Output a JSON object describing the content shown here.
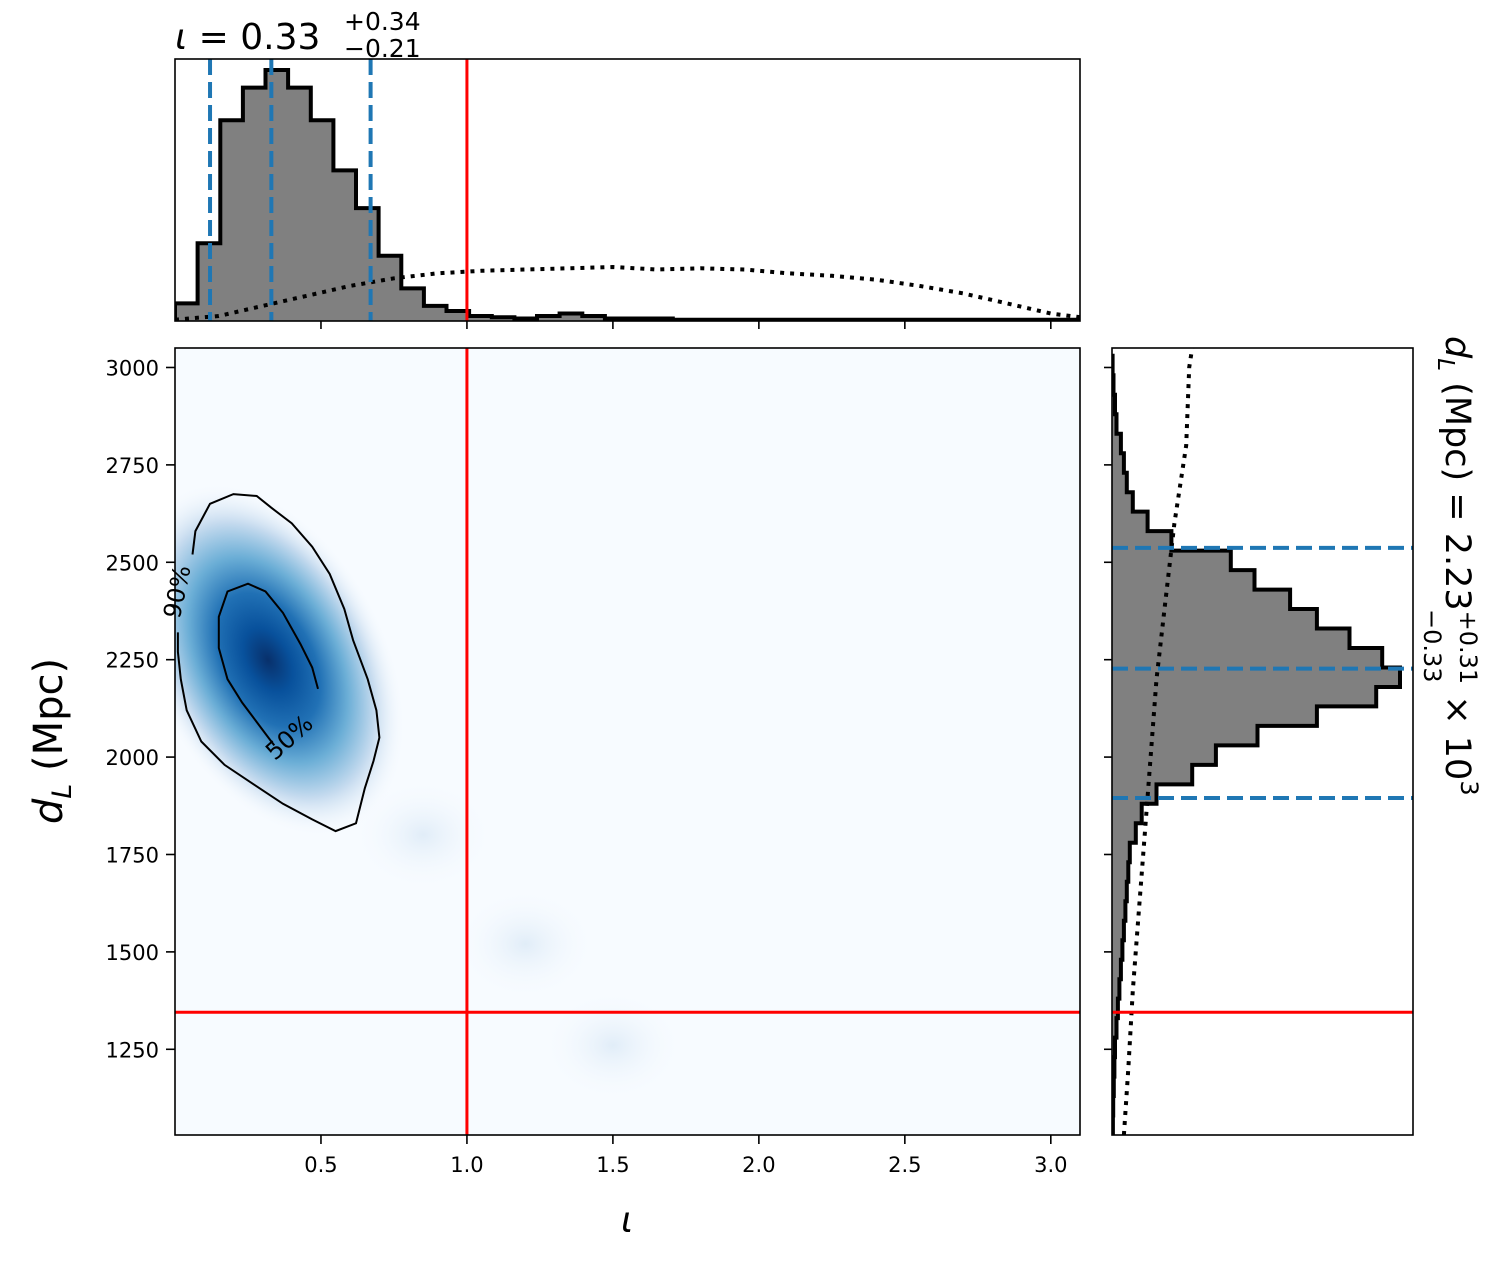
{
  "chart_data": [
    {
      "type": "heatmap",
      "panel": "joint",
      "xlabel_base": "ι",
      "ylabel_base": "d",
      "ylabel_sub": "L",
      "ylabel_unit": " (Mpc)",
      "xlim": [
        0.0,
        3.1
      ],
      "ylim": [
        1030,
        3050
      ],
      "xticks": [
        0.5,
        1.0,
        1.5,
        2.0,
        2.5,
        3.0
      ],
      "xtick_labels": [
        "0.5",
        "1.0",
        "1.5",
        "2.0",
        "2.5",
        "3.0"
      ],
      "yticks": [
        1250,
        1500,
        1750,
        2000,
        2250,
        2500,
        2750,
        3000
      ],
      "ytick_labels": [
        "1250",
        "1500",
        "1750",
        "2000",
        "2250",
        "2500",
        "2750",
        "3000"
      ],
      "colormap": "Blues",
      "density_peak": {
        "iota": 0.3,
        "dL": 2235
      },
      "density_secondary_tail": [
        {
          "iota": 0.85,
          "dL": 1800,
          "weight": 0.05
        },
        {
          "iota": 1.2,
          "dL": 1520,
          "weight": 0.04
        },
        {
          "iota": 1.5,
          "dL": 1260,
          "weight": 0.035
        }
      ],
      "injected_value": {
        "iota": 1.0,
        "dL": 1345
      },
      "injection_color": "#ff0000",
      "contours": [
        {
          "label": "50%",
          "points": [
            [
              0.49,
              2175
            ],
            [
              0.47,
              2230
            ],
            [
              0.43,
              2290
            ],
            [
              0.37,
              2370
            ],
            [
              0.31,
              2425
            ],
            [
              0.25,
              2445
            ],
            [
              0.18,
              2425
            ],
            [
              0.15,
              2360
            ],
            [
              0.15,
              2280
            ],
            [
              0.18,
              2200
            ],
            [
              0.23,
              2140
            ],
            [
              0.28,
              2090
            ],
            [
              0.32,
              2050
            ],
            [
              0.34,
              2030
            ]
          ]
        },
        {
          "label": "90%",
          "points": [
            [
              0.06,
              2520
            ],
            [
              0.07,
              2580
            ],
            [
              0.12,
              2650
            ],
            [
              0.2,
              2675
            ],
            [
              0.28,
              2670
            ],
            [
              0.33,
              2640
            ],
            [
              0.4,
              2600
            ],
            [
              0.47,
              2540
            ],
            [
              0.53,
              2470
            ],
            [
              0.58,
              2380
            ],
            [
              0.61,
              2300
            ],
            [
              0.66,
              2200
            ],
            [
              0.69,
              2120
            ],
            [
              0.7,
              2050
            ],
            [
              0.68,
              1990
            ],
            [
              0.65,
              1920
            ],
            [
              0.62,
              1830
            ],
            [
              0.55,
              1810
            ],
            [
              0.47,
              1840
            ],
            [
              0.37,
              1880
            ],
            [
              0.27,
              1930
            ],
            [
              0.17,
              1980
            ],
            [
              0.09,
              2040
            ],
            [
              0.04,
              2120
            ],
            [
              0.02,
              2200
            ],
            [
              0.01,
              2270
            ],
            [
              0.01,
              2320
            ]
          ]
        }
      ]
    },
    {
      "type": "histogram",
      "panel": "top-marginal",
      "parameter": "ι",
      "title_value": "0.33",
      "title_plus": "+0.34",
      "title_minus": "−0.21",
      "bin_edges": [
        0.0,
        0.0775,
        0.155,
        0.2325,
        0.31,
        0.3875,
        0.465,
        0.5425,
        0.62,
        0.6975,
        0.775,
        0.8525,
        0.93,
        1.0075,
        1.085,
        1.1625,
        1.24,
        1.3175,
        1.395,
        1.4725,
        1.55,
        1.6275,
        1.705,
        1.7825,
        1.86,
        1.9375,
        2.015,
        2.0925,
        2.17,
        2.2475,
        2.325,
        2.4025,
        2.48,
        2.5575,
        2.635,
        2.7125,
        2.79,
        2.8675,
        2.945,
        3.0225,
        3.1
      ],
      "counts": [
        0.07,
        0.31,
        0.8,
        0.93,
        1.0,
        0.93,
        0.8,
        0.6,
        0.45,
        0.26,
        0.13,
        0.06,
        0.04,
        0.02,
        0.015,
        0.01,
        0.02,
        0.03,
        0.02,
        0.01,
        0.01,
        0.01,
        0.005,
        0.005,
        0.005,
        0.005,
        0.005,
        0.005,
        0.005,
        0.005,
        0.005,
        0.005,
        0.005,
        0.005,
        0.005,
        0.005,
        0.005,
        0.005,
        0.005,
        0.005
      ],
      "prior": {
        "x": [
          0.0,
          0.15,
          0.3,
          0.45,
          0.6,
          0.75,
          0.9,
          1.05,
          1.2,
          1.35,
          1.5,
          1.65,
          1.8,
          1.95,
          2.1,
          2.25,
          2.4,
          2.55,
          2.7,
          2.85,
          3.0,
          3.1
        ],
        "y": [
          0.005,
          0.02,
          0.06,
          0.1,
          0.14,
          0.17,
          0.19,
          0.2,
          0.205,
          0.21,
          0.215,
          0.205,
          0.21,
          0.205,
          0.19,
          0.18,
          0.165,
          0.14,
          0.11,
          0.07,
          0.03,
          0.015
        ]
      },
      "quantiles": [
        0.12,
        0.33,
        0.67
      ],
      "injected_value": 1.0,
      "fill_color": "#808080",
      "quantile_color": "#1f77b4"
    },
    {
      "type": "histogram",
      "panel": "right-marginal",
      "orientation": "horizontal",
      "parameter": "d_L",
      "title_prefix": "d",
      "title_sub": "L",
      "title_mid": " (Mpc) = 2.23",
      "title_plus": "+0.31",
      "title_minus": "−0.33",
      "title_suffix": " × 10",
      "title_exp": "3",
      "bin_edges": [
        1030,
        1080,
        1130,
        1180,
        1230,
        1280,
        1330,
        1380,
        1430,
        1480,
        1530,
        1580,
        1630,
        1680,
        1730,
        1780,
        1830,
        1880,
        1930,
        1980,
        2030,
        2080,
        2130,
        2180,
        2230,
        2280,
        2330,
        2380,
        2430,
        2480,
        2530,
        2580,
        2630,
        2680,
        2730,
        2780,
        2830,
        2880,
        2930,
        2980,
        3030
      ],
      "counts": [
        0.003,
        0.004,
        0.006,
        0.008,
        0.01,
        0.015,
        0.02,
        0.025,
        0.03,
        0.035,
        0.04,
        0.045,
        0.05,
        0.055,
        0.06,
        0.08,
        0.1,
        0.15,
        0.27,
        0.35,
        0.49,
        0.69,
        0.89,
        0.97,
        0.91,
        0.8,
        0.69,
        0.6,
        0.48,
        0.4,
        0.2,
        0.12,
        0.07,
        0.05,
        0.04,
        0.03,
        0.015,
        0.01,
        0.005,
        0.002
      ],
      "prior": {
        "y": [
          1030,
          1200,
          1400,
          1600,
          1800,
          2000,
          2200,
          2400,
          2600,
          2800,
          3000,
          3050
        ],
        "x": [
          0.04,
          0.055,
          0.07,
          0.09,
          0.11,
          0.13,
          0.15,
          0.18,
          0.21,
          0.25,
          0.26,
          0.27
        ]
      },
      "quantiles": [
        1895,
        2227,
        2537
      ],
      "injected_value": 1345,
      "fill_color": "#808080",
      "quantile_color": "#1f77b4"
    }
  ]
}
